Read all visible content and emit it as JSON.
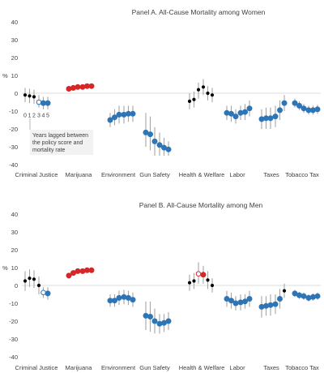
{
  "colors": {
    "not_significant": "#000000",
    "negative_significant": "#2e75b6",
    "positive_significant": "#d62728",
    "ci_line": "#a6a6a6",
    "hollow_fill": "#ffffff",
    "annotation_bg": "#f2f2f2",
    "axis_text": "#404040"
  },
  "chart_data": [
    {
      "type": "scatter",
      "title": "Panel A. All-Cause Mortality among Women",
      "ylabel": "%",
      "ylim": [
        -40,
        40
      ],
      "yticks": [
        -40,
        -30,
        -20,
        -10,
        0,
        10,
        20,
        30,
        40
      ],
      "grid": false,
      "categories": [
        "Criminal Justice",
        "Marijuana",
        "Environment",
        "Gun Safety",
        "Health & Welfare",
        "Labor",
        "Taxes",
        "Tobacco Tax"
      ],
      "lag_labels": [
        "0",
        "1",
        "2",
        "3",
        "4",
        "5"
      ],
      "annotation": "Years lagged between the policy score and mortality rate",
      "series": [
        {
          "category": "Criminal Justice",
          "points": [
            {
              "lag": 0,
              "value": -1,
              "lo": -5,
              "hi": 3,
              "style": "ns"
            },
            {
              "lag": 1,
              "value": -1.5,
              "lo": -5.5,
              "hi": 2.5,
              "style": "ns"
            },
            {
              "lag": 2,
              "value": -2,
              "lo": -6,
              "hi": 2,
              "style": "ns"
            },
            {
              "lag": 3,
              "value": -5,
              "lo": -8,
              "hi": -1,
              "style": "hollow_neg"
            },
            {
              "lag": 4,
              "value": -5.5,
              "lo": -9,
              "hi": -2,
              "style": "neg"
            },
            {
              "lag": 5,
              "value": -5.5,
              "lo": -9,
              "hi": -2,
              "style": "neg"
            }
          ]
        },
        {
          "category": "Marijuana",
          "points": [
            {
              "lag": 0,
              "value": 2.5,
              "lo": 1.5,
              "hi": 3.5,
              "style": "pos"
            },
            {
              "lag": 1,
              "value": 3,
              "lo": 2,
              "hi": 4,
              "style": "pos"
            },
            {
              "lag": 2,
              "value": 3.5,
              "lo": 2.5,
              "hi": 4.5,
              "style": "pos"
            },
            {
              "lag": 3,
              "value": 3.5,
              "lo": 2.5,
              "hi": 4.5,
              "style": "pos"
            },
            {
              "lag": 4,
              "value": 4,
              "lo": 3,
              "hi": 5,
              "style": "pos"
            },
            {
              "lag": 5,
              "value": 4,
              "lo": 3,
              "hi": 5,
              "style": "pos"
            }
          ]
        },
        {
          "category": "Environment",
          "points": [
            {
              "lag": 0,
              "value": -15,
              "lo": -19,
              "hi": -11,
              "style": "neg"
            },
            {
              "lag": 1,
              "value": -13.5,
              "lo": -18,
              "hi": -9,
              "style": "neg"
            },
            {
              "lag": 2,
              "value": -12,
              "lo": -17,
              "hi": -7,
              "style": "neg"
            },
            {
              "lag": 3,
              "value": -12,
              "lo": -17,
              "hi": -7,
              "style": "neg"
            },
            {
              "lag": 4,
              "value": -11.5,
              "lo": -16,
              "hi": -7,
              "style": "neg"
            },
            {
              "lag": 5,
              "value": -11.5,
              "lo": -16,
              "hi": -7,
              "style": "neg"
            }
          ]
        },
        {
          "category": "Gun Safety",
          "points": [
            {
              "lag": 0,
              "value": -22,
              "lo": -30,
              "hi": -11,
              "style": "neg"
            },
            {
              "lag": 1,
              "value": -23,
              "lo": -32,
              "hi": -13,
              "style": "neg"
            },
            {
              "lag": 2,
              "value": -27,
              "lo": -35,
              "hi": -19,
              "style": "neg"
            },
            {
              "lag": 3,
              "value": -29,
              "lo": -35,
              "hi": -22,
              "style": "neg"
            },
            {
              "lag": 4,
              "value": -30.5,
              "lo": -35,
              "hi": -25,
              "style": "neg"
            },
            {
              "lag": 5,
              "value": -31.5,
              "lo": -35,
              "hi": -27,
              "style": "neg"
            }
          ]
        },
        {
          "category": "Health & Welfare",
          "points": [
            {
              "lag": 0,
              "value": -4.5,
              "lo": -9,
              "hi": 0,
              "style": "ns"
            },
            {
              "lag": 1,
              "value": -3.5,
              "lo": -8,
              "hi": 1,
              "style": "ns"
            },
            {
              "lag": 2,
              "value": 2,
              "lo": -3,
              "hi": 6,
              "style": "ns"
            },
            {
              "lag": 3,
              "value": 3.5,
              "lo": -1,
              "hi": 8,
              "style": "ns"
            },
            {
              "lag": 4,
              "value": 0,
              "lo": -4,
              "hi": 4,
              "style": "ns"
            },
            {
              "lag": 5,
              "value": -1,
              "lo": -5,
              "hi": 3,
              "style": "ns"
            }
          ]
        },
        {
          "category": "Labor",
          "points": [
            {
              "lag": 0,
              "value": -11,
              "lo": -15,
              "hi": -7,
              "style": "neg"
            },
            {
              "lag": 1,
              "value": -11.5,
              "lo": -16,
              "hi": -7,
              "style": "neg"
            },
            {
              "lag": 2,
              "value": -13,
              "lo": -17,
              "hi": -9,
              "style": "neg"
            },
            {
              "lag": 3,
              "value": -11,
              "lo": -15,
              "hi": -7,
              "style": "neg"
            },
            {
              "lag": 4,
              "value": -10.5,
              "lo": -15,
              "hi": -6,
              "style": "neg"
            },
            {
              "lag": 5,
              "value": -8.5,
              "lo": -13,
              "hi": -4,
              "style": "neg"
            }
          ]
        },
        {
          "category": "Taxes",
          "points": [
            {
              "lag": 0,
              "value": -14.5,
              "lo": -20,
              "hi": -9,
              "style": "neg"
            },
            {
              "lag": 1,
              "value": -14,
              "lo": -20,
              "hi": -8,
              "style": "neg"
            },
            {
              "lag": 2,
              "value": -14,
              "lo": -20,
              "hi": -8,
              "style": "neg"
            },
            {
              "lag": 3,
              "value": -13,
              "lo": -19,
              "hi": -7,
              "style": "neg"
            },
            {
              "lag": 4,
              "value": -9.5,
              "lo": -15,
              "hi": -4,
              "style": "neg"
            },
            {
              "lag": 5,
              "value": -5.5,
              "lo": -10,
              "hi": -1,
              "style": "neg"
            }
          ]
        },
        {
          "category": "Tobacco Tax",
          "points": [
            {
              "lag": 0,
              "value": -5.5,
              "lo": -8,
              "hi": -3,
              "style": "neg"
            },
            {
              "lag": 1,
              "value": -7,
              "lo": -9.5,
              "hi": -4.5,
              "style": "neg"
            },
            {
              "lag": 2,
              "value": -8.5,
              "lo": -11,
              "hi": -6,
              "style": "neg"
            },
            {
              "lag": 3,
              "value": -9.5,
              "lo": -12,
              "hi": -7,
              "style": "neg"
            },
            {
              "lag": 4,
              "value": -9.5,
              "lo": -12,
              "hi": -7,
              "style": "neg"
            },
            {
              "lag": 5,
              "value": -9,
              "lo": -11.5,
              "hi": -6.5,
              "style": "neg"
            }
          ]
        }
      ]
    },
    {
      "type": "scatter",
      "title": "Panel B. All-Cause Mortality among Men",
      "ylabel": "%",
      "ylim": [
        -40,
        40
      ],
      "yticks": [
        -40,
        -30,
        -20,
        -10,
        0,
        10,
        20,
        30,
        40
      ],
      "grid": false,
      "categories": [
        "Criminal Justice",
        "Marijuana",
        "Environment",
        "Gun Safety",
        "Health & Welfare",
        "Labor",
        "Taxes",
        "Tobacco Tax"
      ],
      "series": [
        {
          "category": "Criminal Justice",
          "points": [
            {
              "lag": 0,
              "value": 2.5,
              "lo": -3,
              "hi": 8,
              "style": "ns"
            },
            {
              "lag": 1,
              "value": 4,
              "lo": -1,
              "hi": 9,
              "style": "ns"
            },
            {
              "lag": 2,
              "value": 3.5,
              "lo": -1.5,
              "hi": 8.5,
              "style": "ns"
            },
            {
              "lag": 3,
              "value": 0,
              "lo": -5,
              "hi": 5,
              "style": "ns"
            },
            {
              "lag": 4,
              "value": -4,
              "lo": -7,
              "hi": -1,
              "style": "hollow_neg"
            },
            {
              "lag": 5,
              "value": -4.5,
              "lo": -8,
              "hi": -1,
              "style": "neg"
            }
          ]
        },
        {
          "category": "Marijuana",
          "points": [
            {
              "lag": 0,
              "value": 5.5,
              "lo": 4.5,
              "hi": 6.5,
              "style": "pos"
            },
            {
              "lag": 1,
              "value": 7,
              "lo": 5.5,
              "hi": 8.5,
              "style": "pos"
            },
            {
              "lag": 2,
              "value": 8,
              "lo": 6.5,
              "hi": 9.5,
              "style": "pos"
            },
            {
              "lag": 3,
              "value": 8,
              "lo": 6.5,
              "hi": 9.5,
              "style": "pos"
            },
            {
              "lag": 4,
              "value": 8.5,
              "lo": 7,
              "hi": 10,
              "style": "pos"
            },
            {
              "lag": 5,
              "value": 8.5,
              "lo": 7,
              "hi": 10,
              "style": "pos"
            }
          ]
        },
        {
          "category": "Environment",
          "points": [
            {
              "lag": 0,
              "value": -8.5,
              "lo": -12,
              "hi": -5,
              "style": "neg"
            },
            {
              "lag": 1,
              "value": -8.5,
              "lo": -12,
              "hi": -5,
              "style": "neg"
            },
            {
              "lag": 2,
              "value": -7,
              "lo": -11,
              "hi": -3,
              "style": "neg"
            },
            {
              "lag": 3,
              "value": -6.5,
              "lo": -10.5,
              "hi": -2.5,
              "style": "neg"
            },
            {
              "lag": 4,
              "value": -7,
              "lo": -11,
              "hi": -3,
              "style": "neg"
            },
            {
              "lag": 5,
              "value": -8,
              "lo": -12,
              "hi": -4,
              "style": "neg"
            }
          ]
        },
        {
          "category": "Gun Safety",
          "points": [
            {
              "lag": 0,
              "value": -17,
              "lo": -25,
              "hi": -9,
              "style": "neg"
            },
            {
              "lag": 1,
              "value": -17.5,
              "lo": -26,
              "hi": -9,
              "style": "neg"
            },
            {
              "lag": 2,
              "value": -20,
              "lo": -27,
              "hi": -13,
              "style": "neg"
            },
            {
              "lag": 3,
              "value": -21.5,
              "lo": -27,
              "hi": -16,
              "style": "neg"
            },
            {
              "lag": 4,
              "value": -21,
              "lo": -26,
              "hi": -16,
              "style": "neg"
            },
            {
              "lag": 5,
              "value": -20,
              "lo": -25,
              "hi": -15,
              "style": "neg"
            }
          ]
        },
        {
          "category": "Health & Welfare",
          "points": [
            {
              "lag": 0,
              "value": 1.5,
              "lo": -3,
              "hi": 6,
              "style": "ns"
            },
            {
              "lag": 1,
              "value": 2.5,
              "lo": -2,
              "hi": 7,
              "style": "ns"
            },
            {
              "lag": 2,
              "value": 6.5,
              "lo": 1,
              "hi": 13,
              "style": "hollow_pos"
            },
            {
              "lag": 3,
              "value": 6,
              "lo": 1,
              "hi": 11,
              "style": "pos"
            },
            {
              "lag": 4,
              "value": 3,
              "lo": -2,
              "hi": 8,
              "style": "ns"
            },
            {
              "lag": 5,
              "value": 0,
              "lo": -4,
              "hi": 4,
              "style": "ns"
            }
          ]
        },
        {
          "category": "Labor",
          "points": [
            {
              "lag": 0,
              "value": -7.5,
              "lo": -12,
              "hi": -3,
              "style": "neg"
            },
            {
              "lag": 1,
              "value": -8.5,
              "lo": -13,
              "hi": -4,
              "style": "neg"
            },
            {
              "lag": 2,
              "value": -10,
              "lo": -14,
              "hi": -6,
              "style": "neg"
            },
            {
              "lag": 3,
              "value": -9.5,
              "lo": -14,
              "hi": -5,
              "style": "neg"
            },
            {
              "lag": 4,
              "value": -9,
              "lo": -13,
              "hi": -5,
              "style": "neg"
            },
            {
              "lag": 5,
              "value": -7.5,
              "lo": -12,
              "hi": -3,
              "style": "neg"
            }
          ]
        },
        {
          "category": "Taxes",
          "points": [
            {
              "lag": 0,
              "value": -12,
              "lo": -18,
              "hi": -6,
              "style": "neg"
            },
            {
              "lag": 1,
              "value": -11.5,
              "lo": -17,
              "hi": -6,
              "style": "neg"
            },
            {
              "lag": 2,
              "value": -11,
              "lo": -17,
              "hi": -5,
              "style": "neg"
            },
            {
              "lag": 3,
              "value": -10.5,
              "lo": -16,
              "hi": -5,
              "style": "neg"
            },
            {
              "lag": 4,
              "value": -7.5,
              "lo": -13,
              "hi": -2,
              "style": "neg"
            },
            {
              "lag": 5,
              "value": -3,
              "lo": -7,
              "hi": 1,
              "style": "ns"
            }
          ]
        },
        {
          "category": "Tobacco Tax",
          "points": [
            {
              "lag": 0,
              "value": -4.5,
              "lo": -6.5,
              "hi": -2.5,
              "style": "neg"
            },
            {
              "lag": 1,
              "value": -5.5,
              "lo": -7.5,
              "hi": -3.5,
              "style": "neg"
            },
            {
              "lag": 2,
              "value": -6,
              "lo": -8,
              "hi": -4,
              "style": "neg"
            },
            {
              "lag": 3,
              "value": -7,
              "lo": -9,
              "hi": -5,
              "style": "neg"
            },
            {
              "lag": 4,
              "value": -6.5,
              "lo": -8.5,
              "hi": -4.5,
              "style": "neg"
            },
            {
              "lag": 5,
              "value": -6,
              "lo": -8,
              "hi": -4,
              "style": "neg"
            }
          ]
        }
      ]
    }
  ]
}
